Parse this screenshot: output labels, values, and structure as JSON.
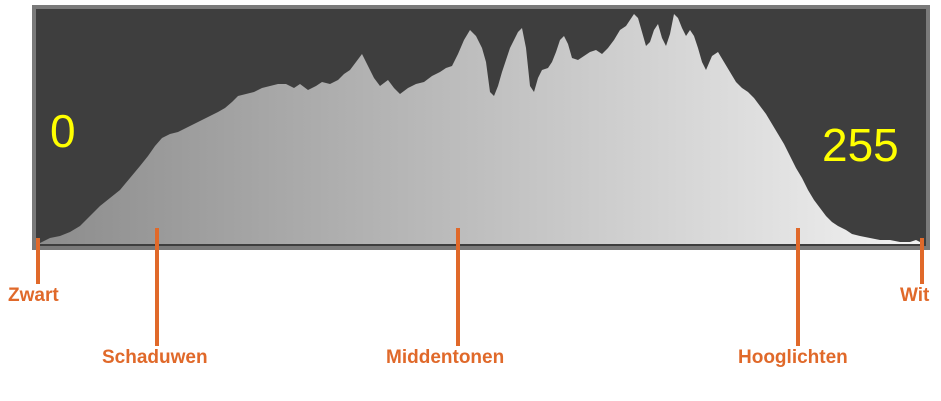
{
  "histogram": {
    "min_value": "0",
    "max_value": "255",
    "colors": {
      "panel_background": "#3e3e3e",
      "panel_border": "#7a7a7a",
      "fill_dark": "#8c8c8c",
      "fill_light": "#f2f2f2",
      "value_text": "#ffff00",
      "marker": "#e0692a"
    }
  },
  "zones": {
    "zwart": "Zwart",
    "schaduwen": "Schaduwen",
    "middentonen": "Middentonen",
    "hooglichten": "Hooglichten",
    "wit": "Wit"
  }
}
